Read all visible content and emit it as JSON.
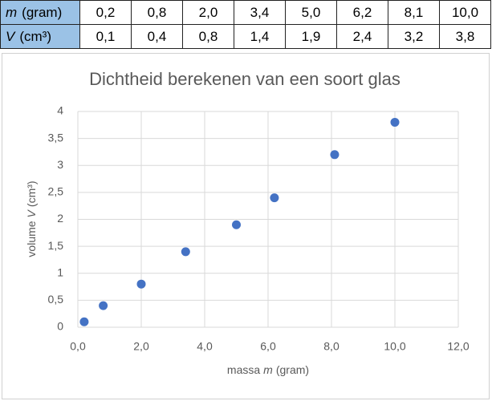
{
  "table": {
    "rows": [
      {
        "symbol": "m",
        "unit": "(gram)",
        "cells": [
          "0,2",
          "0,8",
          "2,0",
          "3,4",
          "5,0",
          "6,2",
          "8,1",
          "10,0"
        ]
      },
      {
        "symbol": "V",
        "unit": "(cm³)",
        "cells": [
          "0,1",
          "0,4",
          "0,8",
          "1,4",
          "1,9",
          "2,4",
          "3,2",
          "3,8"
        ]
      }
    ]
  },
  "chart_data": {
    "type": "scatter",
    "title": "Dichtheid berekenen van een soort glas",
    "x_label": [
      "massa",
      "m",
      "(gram)"
    ],
    "y_label": [
      "volume",
      "V",
      "(cm³)"
    ],
    "x": [
      0.2,
      0.8,
      2.0,
      3.4,
      5.0,
      6.2,
      8.1,
      10.0
    ],
    "series": [
      {
        "color": "#4472c4",
        "values": [
          0.1,
          0.4,
          0.8,
          1.4,
          1.9,
          2.4,
          3.2,
          3.8
        ]
      }
    ],
    "xlim": [
      0,
      12
    ],
    "ylim": [
      0,
      4
    ],
    "xticks": [
      {
        "value": 0,
        "label": "0,0"
      },
      {
        "value": 2,
        "label": "2,0"
      },
      {
        "value": 4,
        "label": "4,0"
      },
      {
        "value": 6,
        "label": "6,0"
      },
      {
        "value": 8,
        "label": "8,0"
      },
      {
        "value": 10,
        "label": "10,0"
      },
      {
        "value": 12,
        "label": "12,0"
      }
    ],
    "yticks": [
      0,
      {
        "value": 0.5,
        "label": "0,5"
      },
      1,
      {
        "value": 1.5,
        "label": "1,5"
      },
      2,
      {
        "value": 2.5,
        "label": "2,5"
      },
      3,
      {
        "value": 3.5,
        "label": "3,5"
      },
      4
    ],
    "grid": true
  }
}
